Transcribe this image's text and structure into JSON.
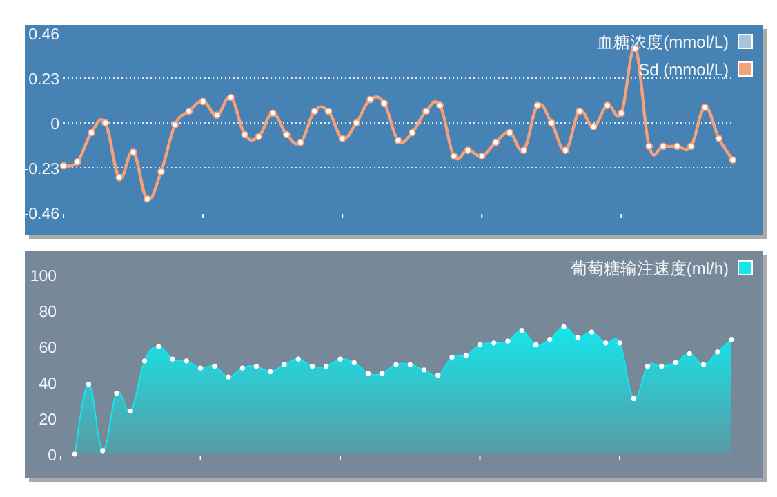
{
  "chart_data": [
    {
      "type": "line",
      "categories": [
        null,
        null,
        null,
        null,
        null,
        null,
        null,
        null,
        null,
        null,
        null,
        null,
        null,
        null,
        null,
        null,
        null,
        null,
        null,
        null,
        null,
        null,
        null,
        null,
        null,
        null,
        null,
        null,
        null,
        null,
        null,
        null,
        null,
        null,
        null,
        null,
        null,
        null,
        null,
        null,
        null,
        null,
        null,
        null,
        null,
        null,
        null,
        null,
        null
      ],
      "ylim": [
        -0.46,
        0.46
      ],
      "yticks": [
        -0.46,
        -0.23,
        0,
        0.23,
        0.46
      ],
      "grid": "y",
      "legend": "top right",
      "marker": "circle",
      "series": [
        {
          "name": "血糖浓度(mmol/L)",
          "color": "#a8c4dd",
          "values": [
            null,
            null,
            null,
            null,
            null,
            null,
            null,
            null,
            null,
            null,
            null,
            null,
            null,
            null,
            null,
            null,
            null,
            null,
            null,
            null,
            null,
            null,
            null,
            null,
            null,
            null,
            null,
            null,
            null,
            null,
            null,
            null,
            null,
            null,
            null,
            null,
            null,
            null,
            null,
            null,
            null,
            null,
            null,
            null,
            null,
            null,
            null,
            null,
            null
          ]
        },
        {
          "name": "Sd (mmol/L)",
          "color": "#f4a07a",
          "values": [
            -0.22,
            -0.2,
            -0.05,
            0,
            -0.28,
            -0.15,
            -0.39,
            -0.25,
            -0.01,
            0.06,
            0.11,
            0.04,
            0.13,
            -0.06,
            -0.07,
            0.05,
            -0.06,
            -0.1,
            0.06,
            0.06,
            -0.08,
            0,
            0.12,
            0.1,
            -0.09,
            -0.05,
            0.06,
            0.09,
            -0.17,
            -0.14,
            -0.17,
            -0.1,
            -0.05,
            -0.14,
            0.09,
            0,
            -0.14,
            0.06,
            -0.02,
            0.09,
            0.05,
            0.38,
            -0.12,
            -0.12,
            -0.12,
            -0.12,
            0.08,
            -0.08,
            -0.19
          ]
        }
      ]
    },
    {
      "type": "area",
      "categories": [
        null,
        null,
        null,
        null,
        null,
        null,
        null,
        null,
        null,
        null,
        null,
        null,
        null,
        null,
        null,
        null,
        null,
        null,
        null,
        null,
        null,
        null,
        null,
        null,
        null,
        null,
        null,
        null,
        null,
        null,
        null,
        null,
        null,
        null,
        null,
        null,
        null,
        null,
        null,
        null,
        null,
        null,
        null,
        null,
        null,
        null,
        null,
        null,
        null
      ],
      "ylim": [
        0,
        100
      ],
      "yticks": [
        0,
        20,
        40,
        60,
        80,
        100
      ],
      "legend": "top right",
      "marker": "circle",
      "series": [
        {
          "name": "葡萄糖输注速度(ml/h)",
          "color": "#14e6ec",
          "values": [
            null,
            0,
            39,
            2,
            34,
            24,
            52,
            60,
            53,
            52,
            48,
            49,
            43,
            48,
            49,
            46,
            50,
            53,
            49,
            49,
            53,
            51,
            45,
            45,
            50,
            50,
            47,
            44,
            54,
            55,
            61,
            62,
            63,
            69,
            61,
            64,
            71,
            65,
            68,
            62,
            62,
            31,
            49,
            49,
            51,
            56,
            50,
            57,
            64
          ]
        }
      ]
    }
  ]
}
